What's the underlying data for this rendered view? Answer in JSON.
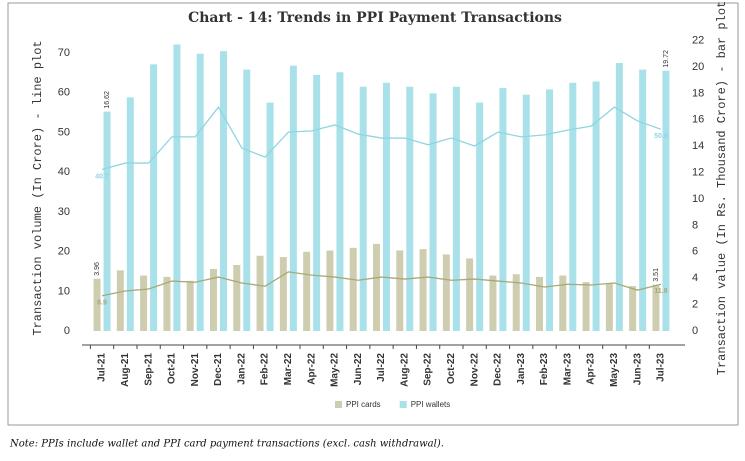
{
  "chart_data": {
    "type": "combo",
    "title": "Chart - 14: Trends in PPI Payment Transactions",
    "ylabel": "Transaction volume (In Crore) - line plot",
    "y2label": "Transaction value (In Rs. Thousand Crore) - bar plot",
    "categories": [
      "Jul-21",
      "Aug-21",
      "Sep-21",
      "Oct-21",
      "Nov-21",
      "Dec-21",
      "Jan-22",
      "Feb-22",
      "Mar-22",
      "Apr-22",
      "May-22",
      "Jun-22",
      "Jul-22",
      "Aug-22",
      "Sep-22",
      "Oct-22",
      "Nov-22",
      "Dec-22",
      "Jan-23",
      "Feb-23",
      "Mar-23",
      "Apr-23",
      "May-23",
      "Jun-23",
      "Jul-23"
    ],
    "ylim": [
      -3.5,
      75.8
    ],
    "yticks": [
      0,
      10,
      20,
      30,
      40,
      50,
      60,
      70
    ],
    "y2lim": [
      -1.06,
      22.8
    ],
    "y2ticks": [
      0,
      2,
      4,
      6,
      8,
      10,
      12,
      14,
      16,
      18,
      20,
      22
    ],
    "legend": "bottom",
    "series": [
      {
        "name": "PPI cards",
        "type": "bar",
        "axis": "y2",
        "color": "#cfcdb0",
        "values": [
          3.96,
          4.6,
          4.2,
          4.1,
          3.8,
          4.7,
          5.0,
          5.7,
          5.6,
          6.0,
          6.1,
          6.3,
          6.6,
          6.1,
          6.2,
          5.8,
          5.5,
          4.2,
          4.3,
          4.1,
          4.2,
          3.7,
          3.6,
          3.4,
          3.51
        ],
        "value_labels": [
          "3.96",
          null,
          null,
          null,
          null,
          null,
          null,
          null,
          null,
          null,
          null,
          null,
          null,
          null,
          null,
          null,
          null,
          null,
          null,
          null,
          null,
          null,
          null,
          null,
          "3.51"
        ]
      },
      {
        "name": "PPI wallets",
        "type": "bar",
        "axis": "y2",
        "color": "#a9e1ea",
        "values": [
          16.62,
          17.7,
          20.2,
          21.7,
          21.0,
          21.2,
          19.8,
          17.3,
          20.1,
          19.4,
          19.6,
          18.5,
          18.8,
          18.5,
          18.0,
          18.5,
          17.3,
          18.4,
          17.9,
          18.3,
          18.8,
          18.9,
          20.3,
          19.8,
          19.72
        ],
        "value_labels": [
          "16.62",
          null,
          null,
          null,
          null,
          null,
          null,
          null,
          null,
          null,
          null,
          null,
          null,
          null,
          null,
          null,
          null,
          null,
          null,
          null,
          null,
          null,
          null,
          null,
          "19.72"
        ]
      },
      {
        "name": "PPI cards",
        "type": "line",
        "color": "#a8a878",
        "values": [
          8.9,
          10.1,
          10.6,
          12.6,
          12.3,
          13.6,
          12.1,
          11.3,
          14.9,
          14.1,
          13.6,
          12.8,
          13.6,
          13.1,
          13.6,
          12.8,
          13.1,
          12.6,
          12.1,
          11.1,
          11.8,
          11.6,
          12.1,
          10.3,
          11.8
        ],
        "value_labels": [
          "8.9",
          null,
          null,
          null,
          null,
          null,
          null,
          null,
          null,
          null,
          null,
          null,
          null,
          null,
          null,
          null,
          null,
          null,
          null,
          null,
          null,
          null,
          null,
          null,
          "11.8"
        ]
      },
      {
        "name": "PPI wallets",
        "type": "line",
        "color": "#8fd6e0",
        "values": [
          40.7,
          42.3,
          42.3,
          48.9,
          48.9,
          56.4,
          46.1,
          43.8,
          50.1,
          50.4,
          51.9,
          49.6,
          48.6,
          48.6,
          46.9,
          48.6,
          46.6,
          50.1,
          48.9,
          49.4,
          50.6,
          51.6,
          56.4,
          52.9,
          50.8
        ],
        "value_labels": [
          "40.7",
          null,
          null,
          null,
          null,
          null,
          null,
          null,
          null,
          null,
          null,
          null,
          null,
          null,
          null,
          null,
          null,
          null,
          null,
          null,
          null,
          null,
          null,
          null,
          "50.8"
        ]
      }
    ]
  },
  "note": "Note: PPIs include wallet and PPI card payment transactions (excl. cash withdrawal)."
}
